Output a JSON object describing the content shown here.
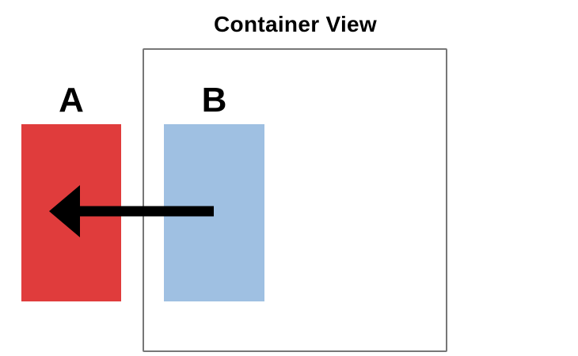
{
  "title": "Container View",
  "views": [
    {
      "label": "A",
      "color": "#e03c3c"
    },
    {
      "label": "B",
      "color": "#9fc0e2"
    }
  ],
  "arrow": {
    "from": "B",
    "to": "A",
    "color": "#000000"
  }
}
